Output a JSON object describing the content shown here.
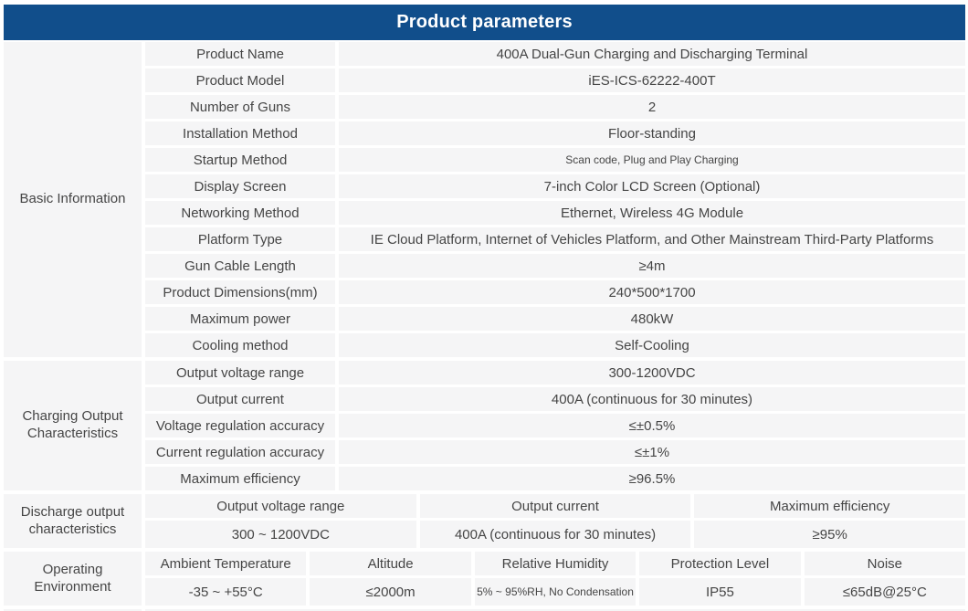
{
  "title": "Product parameters",
  "colors": {
    "header_bg": "#114e8b",
    "header_text": "#ffffff",
    "cell_bg": "#f5f5f6",
    "text": "#454545"
  },
  "basic_information": {
    "label": "Basic Information",
    "rows": [
      {
        "param": "Product Name",
        "value": "400A Dual-Gun Charging and Discharging Terminal"
      },
      {
        "param": "Product Model",
        "value": "iES-ICS-62222-400T"
      },
      {
        "param": "Number of Guns",
        "value": "2"
      },
      {
        "param": "Installation Method",
        "value": "Floor-standing"
      },
      {
        "param": "Startup Method",
        "value": "Scan code, Plug and Play Charging"
      },
      {
        "param": "Display Screen",
        "value": "7-inch Color LCD Screen (Optional)"
      },
      {
        "param": "Networking Method",
        "value": "Ethernet, Wireless 4G Module"
      },
      {
        "param": "Platform Type",
        "value": "IE Cloud Platform, Internet of Vehicles Platform, and Other Mainstream Third-Party Platforms"
      },
      {
        "param": "Gun Cable Length",
        "value": "≥4m"
      },
      {
        "param": "Product Dimensions(mm)",
        "value": "240*500*1700"
      },
      {
        "param": "Maximum power",
        "value": "480kW"
      },
      {
        "param": "Cooling method",
        "value": "Self-Cooling"
      }
    ]
  },
  "charging_output": {
    "label": "Charging Output Characteristics",
    "rows": [
      {
        "param": "Output voltage range",
        "value": "300-1200VDC"
      },
      {
        "param": "Output current",
        "value": "400A (continuous for 30 minutes)"
      },
      {
        "param": "Voltage regulation accuracy",
        "value": "≤±0.5%"
      },
      {
        "param": "Current regulation accuracy",
        "value": "≤±1%"
      },
      {
        "param": "Maximum efficiency",
        "value": "≥96.5%"
      }
    ]
  },
  "discharge_output": {
    "label": "Discharge output characteristics",
    "columns": [
      "Output voltage range",
      "Output current",
      "Maximum efficiency"
    ],
    "values": [
      "300 ~ 1200VDC",
      "400A (continuous for 30 minutes)",
      "≥95%"
    ]
  },
  "operating_environment": {
    "label": "Operating Environment",
    "columns": [
      "Ambient Temperature",
      "Altitude",
      "Relative Humidity",
      "Protection Level",
      "Noise"
    ],
    "values": [
      "-35 ~ +55°C",
      "≤2000m",
      "5% ~ 95%RH, No Condensation",
      "IP55",
      "≤65dB@25°C"
    ]
  }
}
